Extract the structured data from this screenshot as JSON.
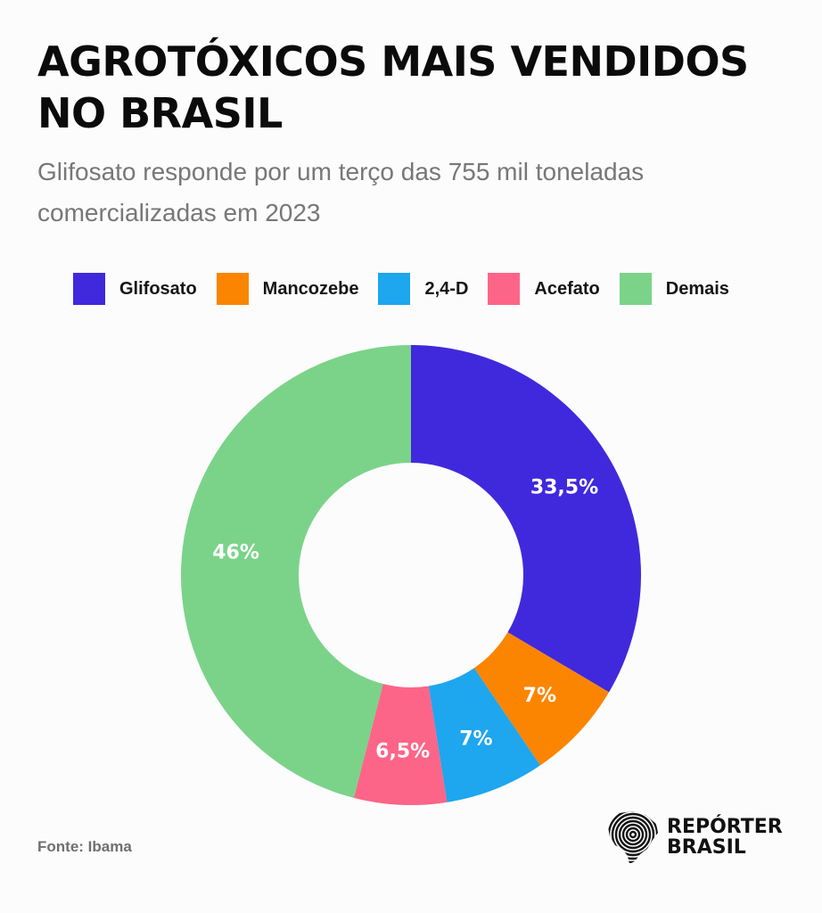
{
  "title": "AGROTÓXICOS MAIS VENDIDOS NO BRASIL",
  "subtitle": "Glifosato responde por um terço das 755 mil toneladas comercializadas em 2023",
  "source": "Fonte: Ibama",
  "brand": {
    "line1": "REPÓRTER",
    "line2": "BRASIL",
    "icon": "fingerprint-brazil-map-icon"
  },
  "chart_data": {
    "type": "pie",
    "variant": "donut",
    "title": "AGROTÓXICOS MAIS VENDIDOS NO BRASIL",
    "legend_position": "top",
    "categories": [
      "Glifosato",
      "Mancozebe",
      "2,4-D",
      "Acefato",
      "Demais"
    ],
    "values": [
      33.5,
      7,
      7,
      6.5,
      46
    ],
    "labels": [
      "33,5%",
      "7%",
      "7%",
      "6,5%",
      "46%"
    ],
    "unit": "%",
    "colors": [
      "#4029dd",
      "#fb8500",
      "#1ea6ee",
      "#fd6588",
      "#7bd389"
    ]
  }
}
